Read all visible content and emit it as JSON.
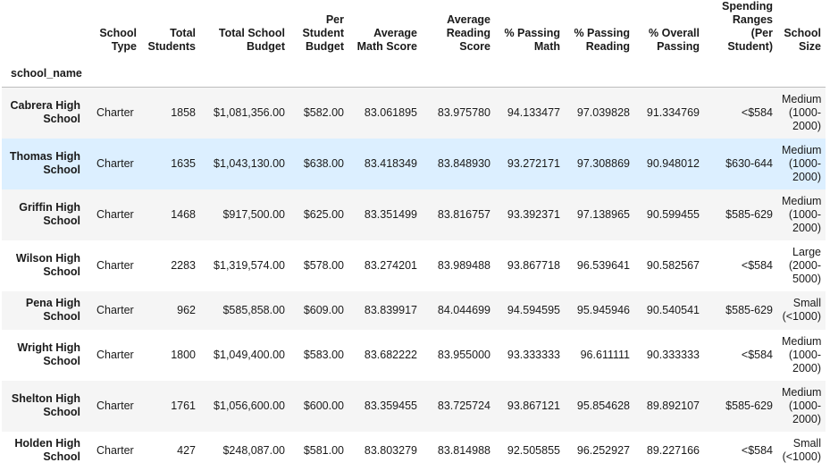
{
  "index_name": "school_name",
  "columns": [
    "School Type",
    "Total Students",
    "Total School Budget",
    "Per Student Budget",
    "Average Math Score",
    "Average Reading Score",
    "% Passing Math",
    "% Passing Reading",
    "% Overall Passing",
    "Spending Ranges (Per Student)",
    "School Size"
  ],
  "rows": [
    {
      "school": "Cabrera High School",
      "type": "Charter",
      "students": "1858",
      "budget": "$1,081,356.00",
      "per_student": "$582.00",
      "math": "83.061895",
      "reading": "83.975780",
      "pass_math": "94.133477",
      "pass_reading": "97.039828",
      "overall": "91.334769",
      "spending": "<$584",
      "size": "Medium (1000-2000)"
    },
    {
      "school": "Thomas High School",
      "type": "Charter",
      "students": "1635",
      "budget": "$1,043,130.00",
      "per_student": "$638.00",
      "math": "83.418349",
      "reading": "83.848930",
      "pass_math": "93.272171",
      "pass_reading": "97.308869",
      "overall": "90.948012",
      "spending": "$630-644",
      "size": "Medium (1000-2000)"
    },
    {
      "school": "Griffin High School",
      "type": "Charter",
      "students": "1468",
      "budget": "$917,500.00",
      "per_student": "$625.00",
      "math": "83.351499",
      "reading": "83.816757",
      "pass_math": "93.392371",
      "pass_reading": "97.138965",
      "overall": "90.599455",
      "spending": "$585-629",
      "size": "Medium (1000-2000)"
    },
    {
      "school": "Wilson High School",
      "type": "Charter",
      "students": "2283",
      "budget": "$1,319,574.00",
      "per_student": "$578.00",
      "math": "83.274201",
      "reading": "83.989488",
      "pass_math": "93.867718",
      "pass_reading": "96.539641",
      "overall": "90.582567",
      "spending": "<$584",
      "size": "Large (2000-5000)"
    },
    {
      "school": "Pena High School",
      "type": "Charter",
      "students": "962",
      "budget": "$585,858.00",
      "per_student": "$609.00",
      "math": "83.839917",
      "reading": "84.044699",
      "pass_math": "94.594595",
      "pass_reading": "95.945946",
      "overall": "90.540541",
      "spending": "$585-629",
      "size": "Small (<1000)"
    },
    {
      "school": "Wright High School",
      "type": "Charter",
      "students": "1800",
      "budget": "$1,049,400.00",
      "per_student": "$583.00",
      "math": "83.682222",
      "reading": "83.955000",
      "pass_math": "93.333333",
      "pass_reading": "96.611111",
      "overall": "90.333333",
      "spending": "<$584",
      "size": "Medium (1000-2000)"
    },
    {
      "school": "Shelton High School",
      "type": "Charter",
      "students": "1761",
      "budget": "$1,056,600.00",
      "per_student": "$600.00",
      "math": "83.359455",
      "reading": "83.725724",
      "pass_math": "93.867121",
      "pass_reading": "95.854628",
      "overall": "89.892107",
      "spending": "$585-629",
      "size": "Medium (1000-2000)"
    },
    {
      "school": "Holden High School",
      "type": "Charter",
      "students": "427",
      "budget": "$248,087.00",
      "per_student": "$581.00",
      "math": "83.803279",
      "reading": "83.814988",
      "pass_math": "92.505855",
      "pass_reading": "96.252927",
      "overall": "89.227166",
      "spending": "<$584",
      "size": "Small (<1000)"
    }
  ]
}
